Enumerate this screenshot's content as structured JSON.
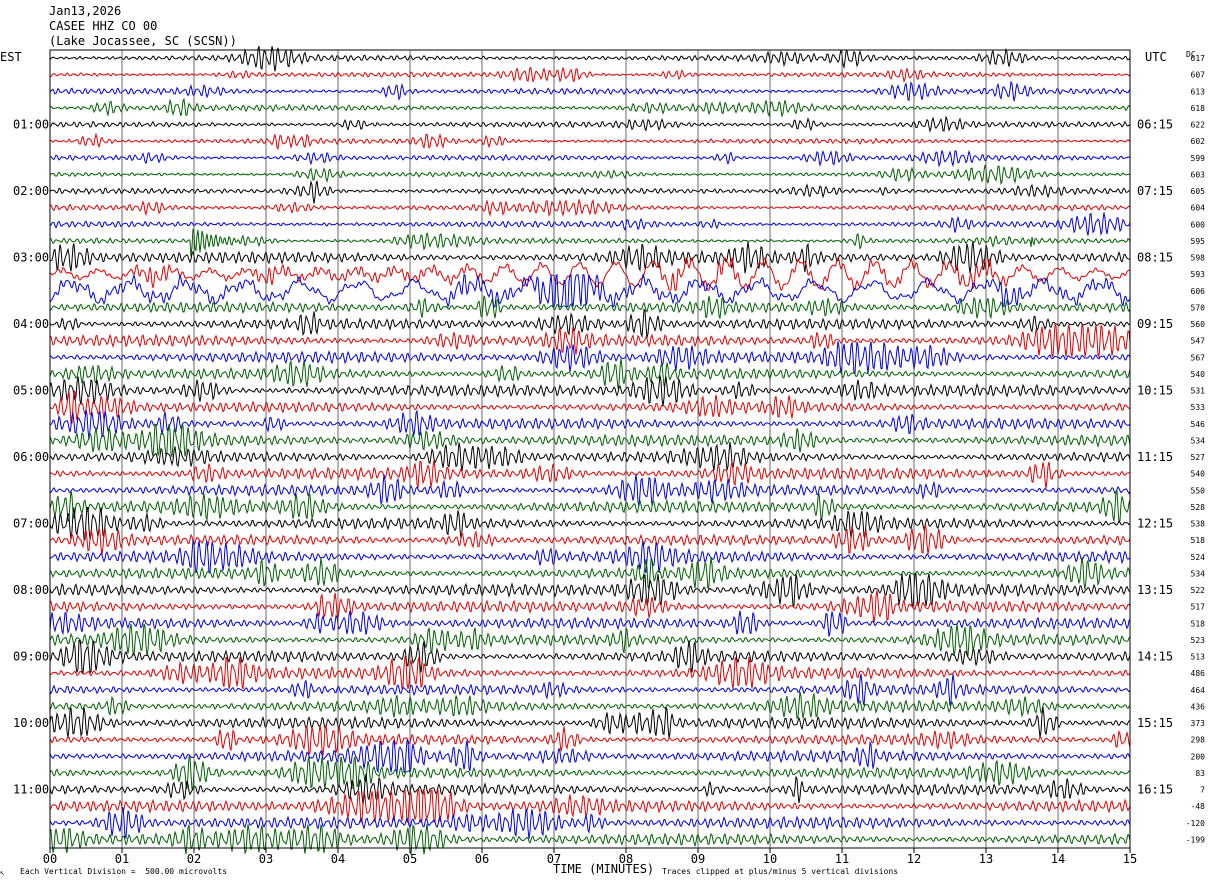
{
  "header": {
    "date": "Jan13,2026",
    "station": "CASEE HHZ CO 00",
    "location": "(Lake Jocassee, SC (SCSN))"
  },
  "left_zone": "EST",
  "right_zone": "UTC",
  "dc_label": "DC",
  "footer": {
    "note_left": "Each Vertical Division =  500.00 microvolts",
    "xlabel": "TIME (MINUTES)",
    "note_right": "Traces clipped at plus/minus 5 vertical divisions"
  },
  "colors": {
    "cycle": [
      "#000000",
      "#e00000",
      "#0000e0",
      "#006000"
    ],
    "grid": "#000000"
  },
  "chart_data": {
    "type": "line",
    "title": "CASEE HHZ CO 00",
    "xlabel": "TIME (MINUTES)",
    "xlim": [
      0,
      15
    ],
    "x_ticks": [
      "00",
      "01",
      "02",
      "03",
      "04",
      "05",
      "06",
      "07",
      "08",
      "09",
      "10",
      "11",
      "12",
      "13",
      "14",
      "15"
    ],
    "rows": 48,
    "minutes_per_row": 15,
    "left_time_labels": [
      "01:00",
      "02:00",
      "03:00",
      "04:00",
      "05:00",
      "06:00",
      "07:00",
      "08:00",
      "09:00",
      "10:00",
      "11:00"
    ],
    "right_time_labels": [
      "06:15",
      "07:15",
      "08:15",
      "09:15",
      "10:15",
      "11:15",
      "12:15",
      "13:15",
      "14:15",
      "15:15",
      "16:15"
    ],
    "dc_offsets": [
      "617",
      "607",
      "613",
      "618",
      "622",
      "602",
      "599",
      "603",
      "605",
      "604",
      "600",
      "595",
      "598",
      "593",
      "606",
      "570",
      "560",
      "547",
      "567",
      "540",
      "531",
      "533",
      "546",
      "534",
      "527",
      "540",
      "550",
      "528",
      "538",
      "518",
      "524",
      "534",
      "522",
      "517",
      "518",
      "523",
      "513",
      "486",
      "464",
      "436",
      "373",
      "298",
      "200",
      "83",
      "7",
      "-48",
      "-120",
      "-199"
    ],
    "annotations": [
      "Local event on row 12 near minute 2.0",
      "Long-period oscillations on rows 13-14"
    ]
  }
}
